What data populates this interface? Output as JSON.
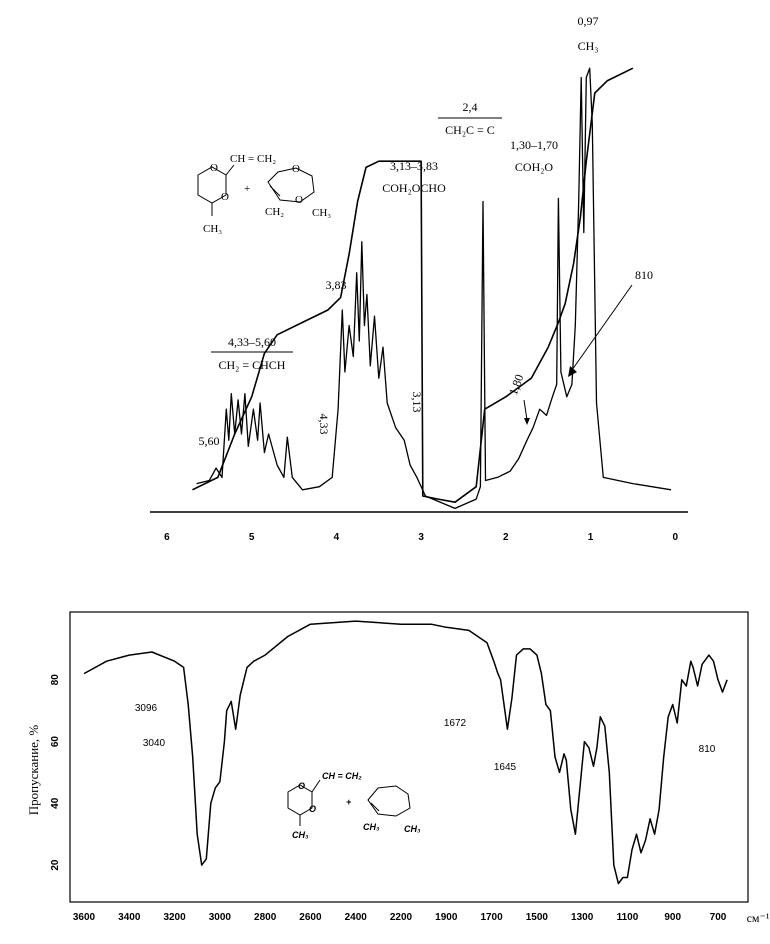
{
  "chart_data": [
    {
      "type": "line",
      "x_ticks": [
        "6",
        "5",
        "4",
        "3",
        "2",
        "1",
        "0"
      ],
      "x_range": [
        6.2,
        -0.15
      ],
      "reversed_x": true,
      "spectrum": [
        [
          5.65,
          0.04
        ],
        [
          5.5,
          0.05
        ],
        [
          5.42,
          0.09
        ],
        [
          5.35,
          0.06
        ],
        [
          5.3,
          0.28
        ],
        [
          5.27,
          0.18
        ],
        [
          5.24,
          0.33
        ],
        [
          5.2,
          0.2
        ],
        [
          5.16,
          0.31
        ],
        [
          5.12,
          0.2
        ],
        [
          5.08,
          0.33
        ],
        [
          5.04,
          0.16
        ],
        [
          4.98,
          0.28
        ],
        [
          4.93,
          0.18
        ],
        [
          4.9,
          0.3
        ],
        [
          4.85,
          0.14
        ],
        [
          4.8,
          0.2
        ],
        [
          4.7,
          0.1
        ],
        [
          4.62,
          0.06
        ],
        [
          4.58,
          0.19
        ],
        [
          4.52,
          0.06
        ],
        [
          4.4,
          0.02
        ],
        [
          4.2,
          0.03
        ],
        [
          4.05,
          0.06
        ],
        [
          3.98,
          0.28
        ],
        [
          3.93,
          0.6
        ],
        [
          3.9,
          0.4
        ],
        [
          3.85,
          0.55
        ],
        [
          3.8,
          0.45
        ],
        [
          3.76,
          0.72
        ],
        [
          3.73,
          0.5
        ],
        [
          3.7,
          0.82
        ],
        [
          3.67,
          0.55
        ],
        [
          3.64,
          0.65
        ],
        [
          3.6,
          0.42
        ],
        [
          3.55,
          0.58
        ],
        [
          3.5,
          0.38
        ],
        [
          3.45,
          0.48
        ],
        [
          3.4,
          0.3
        ],
        [
          3.3,
          0.22
        ],
        [
          3.2,
          0.18
        ],
        [
          3.13,
          0.1
        ],
        [
          3.05,
          0.06
        ],
        [
          2.95,
          0.0
        ],
        [
          2.6,
          -0.04
        ],
        [
          2.35,
          -0.01
        ],
        [
          2.3,
          0.03
        ],
        [
          2.27,
          0.95
        ],
        [
          2.24,
          0.05
        ],
        [
          2.1,
          0.06
        ],
        [
          1.95,
          0.08
        ],
        [
          1.85,
          0.12
        ],
        [
          1.75,
          0.18
        ],
        [
          1.68,
          0.22
        ],
        [
          1.6,
          0.28
        ],
        [
          1.52,
          0.26
        ],
        [
          1.45,
          0.32
        ],
        [
          1.4,
          0.36
        ],
        [
          1.38,
          0.96
        ],
        [
          1.35,
          0.4
        ],
        [
          1.28,
          0.32
        ],
        [
          1.22,
          0.36
        ],
        [
          1.18,
          0.55
        ],
        [
          1.14,
          0.95
        ],
        [
          1.11,
          1.35
        ],
        [
          1.08,
          0.85
        ],
        [
          1.05,
          1.35
        ],
        [
          1.01,
          1.38
        ],
        [
          0.98,
          1.2
        ],
        [
          0.93,
          0.3
        ],
        [
          0.85,
          0.06
        ],
        [
          0.5,
          0.04
        ],
        [
          0.05,
          0.02
        ]
      ],
      "integral": [
        [
          5.7,
          0.02
        ],
        [
          5.4,
          0.06
        ],
        [
          5.2,
          0.2
        ],
        [
          5.0,
          0.32
        ],
        [
          4.85,
          0.46
        ],
        [
          4.7,
          0.52
        ],
        [
          4.4,
          0.56
        ],
        [
          4.1,
          0.6
        ],
        [
          3.95,
          0.64
        ],
        [
          3.85,
          0.78
        ],
        [
          3.75,
          0.95
        ],
        [
          3.65,
          1.06
        ],
        [
          3.5,
          1.08
        ],
        [
          3.0,
          1.08
        ],
        [
          2.98,
          0.0
        ],
        [
          2.8,
          -0.01
        ],
        [
          2.6,
          -0.02
        ],
        [
          2.35,
          0.03
        ],
        [
          2.25,
          0.28
        ],
        [
          2.0,
          0.32
        ],
        [
          1.7,
          0.38
        ],
        [
          1.5,
          0.48
        ],
        [
          1.38,
          0.56
        ],
        [
          1.3,
          0.62
        ],
        [
          1.2,
          0.75
        ],
        [
          1.12,
          0.9
        ],
        [
          1.05,
          1.08
        ],
        [
          0.95,
          1.3
        ],
        [
          0.8,
          1.34
        ],
        [
          0.5,
          1.38
        ]
      ],
      "annotations": [
        {
          "text": "0,97",
          "sub": "CH₃"
        },
        {
          "text": "2,4",
          "sub": "CH₂C = C"
        },
        {
          "text": "1,30–1,70",
          "sub": "COH₂O"
        },
        {
          "text": "3,13–3,83",
          "sub": "COH₂OCHO"
        },
        {
          "text": "3,83"
        },
        {
          "text": "4,33–5,60",
          "sub": "CH₂ = CHCH"
        },
        {
          "text": "5,60"
        },
        {
          "text": "4,33"
        },
        {
          "text": "3,13"
        },
        {
          "text": "1,80"
        },
        {
          "text": "810"
        }
      ],
      "structure": {
        "vinyl": "CH = CH₂",
        "ring_methyl": "CH₃",
        "plus": "+",
        "left_ch2": "CH₂",
        "right_ch3": "CH₃"
      }
    },
    {
      "type": "line",
      "x_ticks": [
        "3600",
        "3400",
        "3200",
        "3000",
        "2800",
        "2600",
        "2400",
        "2200",
        "1900",
        "1700",
        "1500",
        "1300",
        "1100",
        "900",
        "700"
      ],
      "x_unit": "см⁻¹",
      "ylabel": "Пропускание, %",
      "y_ticks": [
        "80",
        "60",
        "40",
        "20"
      ],
      "ylim": [
        10,
        100
      ],
      "spectrum": [
        [
          3600,
          82
        ],
        [
          3500,
          86
        ],
        [
          3400,
          88
        ],
        [
          3300,
          89
        ],
        [
          3200,
          86
        ],
        [
          3160,
          84
        ],
        [
          3140,
          72
        ],
        [
          3120,
          55
        ],
        [
          3100,
          30
        ],
        [
          3080,
          20
        ],
        [
          3060,
          22
        ],
        [
          3040,
          40
        ],
        [
          3020,
          45
        ],
        [
          3000,
          47
        ],
        [
          2980,
          60
        ],
        [
          2970,
          70
        ],
        [
          2950,
          73
        ],
        [
          2930,
          64
        ],
        [
          2910,
          75
        ],
        [
          2880,
          84
        ],
        [
          2850,
          86
        ],
        [
          2800,
          88
        ],
        [
          2700,
          94
        ],
        [
          2600,
          98
        ],
        [
          2400,
          99
        ],
        [
          2200,
          98
        ],
        [
          2000,
          98
        ],
        [
          1900,
          97
        ],
        [
          1800,
          96
        ],
        [
          1720,
          92
        ],
        [
          1690,
          86
        ],
        [
          1672,
          82
        ],
        [
          1660,
          80
        ],
        [
          1645,
          72
        ],
        [
          1630,
          64
        ],
        [
          1610,
          74
        ],
        [
          1590,
          88
        ],
        [
          1560,
          90
        ],
        [
          1530,
          90
        ],
        [
          1500,
          88
        ],
        [
          1480,
          82
        ],
        [
          1460,
          72
        ],
        [
          1440,
          70
        ],
        [
          1420,
          55
        ],
        [
          1400,
          50
        ],
        [
          1380,
          56
        ],
        [
          1370,
          54
        ],
        [
          1350,
          38
        ],
        [
          1330,
          30
        ],
        [
          1310,
          45
        ],
        [
          1290,
          60
        ],
        [
          1270,
          58
        ],
        [
          1250,
          52
        ],
        [
          1235,
          58
        ],
        [
          1220,
          68
        ],
        [
          1200,
          65
        ],
        [
          1180,
          50
        ],
        [
          1160,
          20
        ],
        [
          1140,
          14
        ],
        [
          1120,
          16
        ],
        [
          1100,
          16
        ],
        [
          1080,
          25
        ],
        [
          1060,
          30
        ],
        [
          1040,
          24
        ],
        [
          1020,
          28
        ],
        [
          1000,
          35
        ],
        [
          980,
          30
        ],
        [
          960,
          38
        ],
        [
          940,
          55
        ],
        [
          920,
          68
        ],
        [
          900,
          72
        ],
        [
          880,
          66
        ],
        [
          860,
          80
        ],
        [
          840,
          78
        ],
        [
          820,
          86
        ],
        [
          810,
          84
        ],
        [
          790,
          78
        ],
        [
          770,
          85
        ],
        [
          740,
          88
        ],
        [
          720,
          86
        ],
        [
          700,
          80
        ],
        [
          680,
          76
        ],
        [
          660,
          80
        ]
      ],
      "annotations": [
        {
          "text": "3096"
        },
        {
          "text": "3040"
        },
        {
          "text": "1672"
        },
        {
          "text": "1645"
        },
        {
          "text": "810"
        }
      ],
      "structure": {
        "vinyl": "CH = CH₂",
        "plus": "+",
        "ring_methyl": "CH₃",
        "left_ch3": "CH₃",
        "right_ch3": "CH₃"
      }
    }
  ]
}
